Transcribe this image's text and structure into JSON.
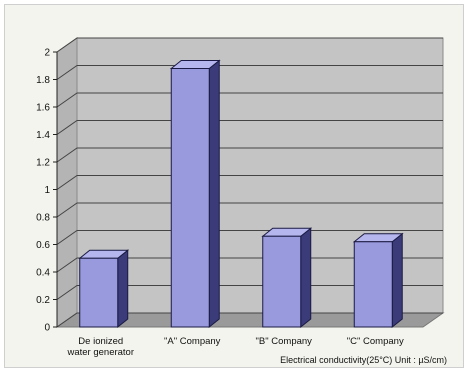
{
  "chart_data": {
    "type": "bar",
    "title": "",
    "xlabel": "Electrical conductivity(25°C) Unit : µS/cm)",
    "ylabel": "",
    "categories": [
      [
        "De ionized",
        "water generator"
      ],
      [
        "\"A\" Company"
      ],
      [
        "\"B\" Company"
      ],
      [
        "\"C\" Company"
      ]
    ],
    "values": [
      0.5,
      1.88,
      0.66,
      0.62
    ],
    "ylim": [
      0,
      2
    ],
    "yticks": [
      "0",
      "0.2",
      "0.4",
      "0.6",
      "0.8",
      "1",
      "1.2",
      "1.4",
      "1.6",
      "1.8",
      "2"
    ],
    "grid": true,
    "legend": "none",
    "three_d": true,
    "colors": {
      "bar_front": "#9999dd",
      "bar_side": "#3b3b7a",
      "bar_top": "#b6b6ee",
      "wall": "#c4c4c4",
      "floor": "#9a9a9a",
      "gridline": "#444444"
    }
  }
}
